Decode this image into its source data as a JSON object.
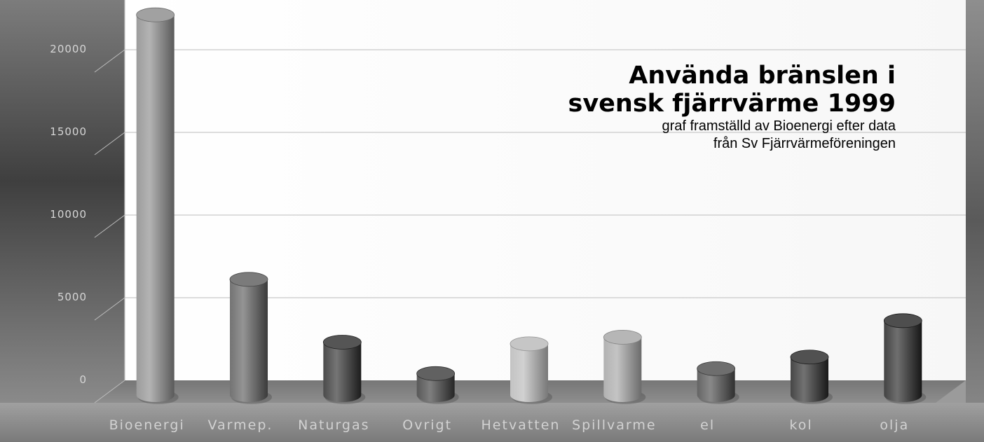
{
  "chart_data": {
    "type": "bar",
    "title_lines": [
      "Använda bränslen i",
      "svensk fjärrvärme 1999"
    ],
    "subtitle_lines": [
      "graf framställd av Bioenergi efter data",
      "från  Sv Fjärrvärmeföreningen"
    ],
    "xlabel": "",
    "ylabel": "",
    "categories": [
      "Bioenergi",
      "Varmep.",
      "Naturgas",
      "Ovrigt",
      "Hetvatten",
      "Spillvarme",
      "el",
      "kol",
      "olja"
    ],
    "values": [
      23000,
      7000,
      3200,
      1300,
      3100,
      3500,
      1600,
      2300,
      4500
    ],
    "colors": [
      "#8a8a8a",
      "#5a5a5a",
      "#2b2b2b",
      "#3a3a3a",
      "#b8b8b8",
      "#a4a4a4",
      "#4a4a4a",
      "#262626",
      "#222222"
    ],
    "yticks": [
      {
        "value": 0,
        "label": "0"
      },
      {
        "value": 5000,
        "label": "5000"
      },
      {
        "value": 10000,
        "label": "10000"
      },
      {
        "value": 15000,
        "label": "15000"
      },
      {
        "value": 20000,
        "label": "20000"
      }
    ],
    "ylim": [
      0,
      25000
    ],
    "grid": true,
    "style": "3d-cylinder"
  }
}
